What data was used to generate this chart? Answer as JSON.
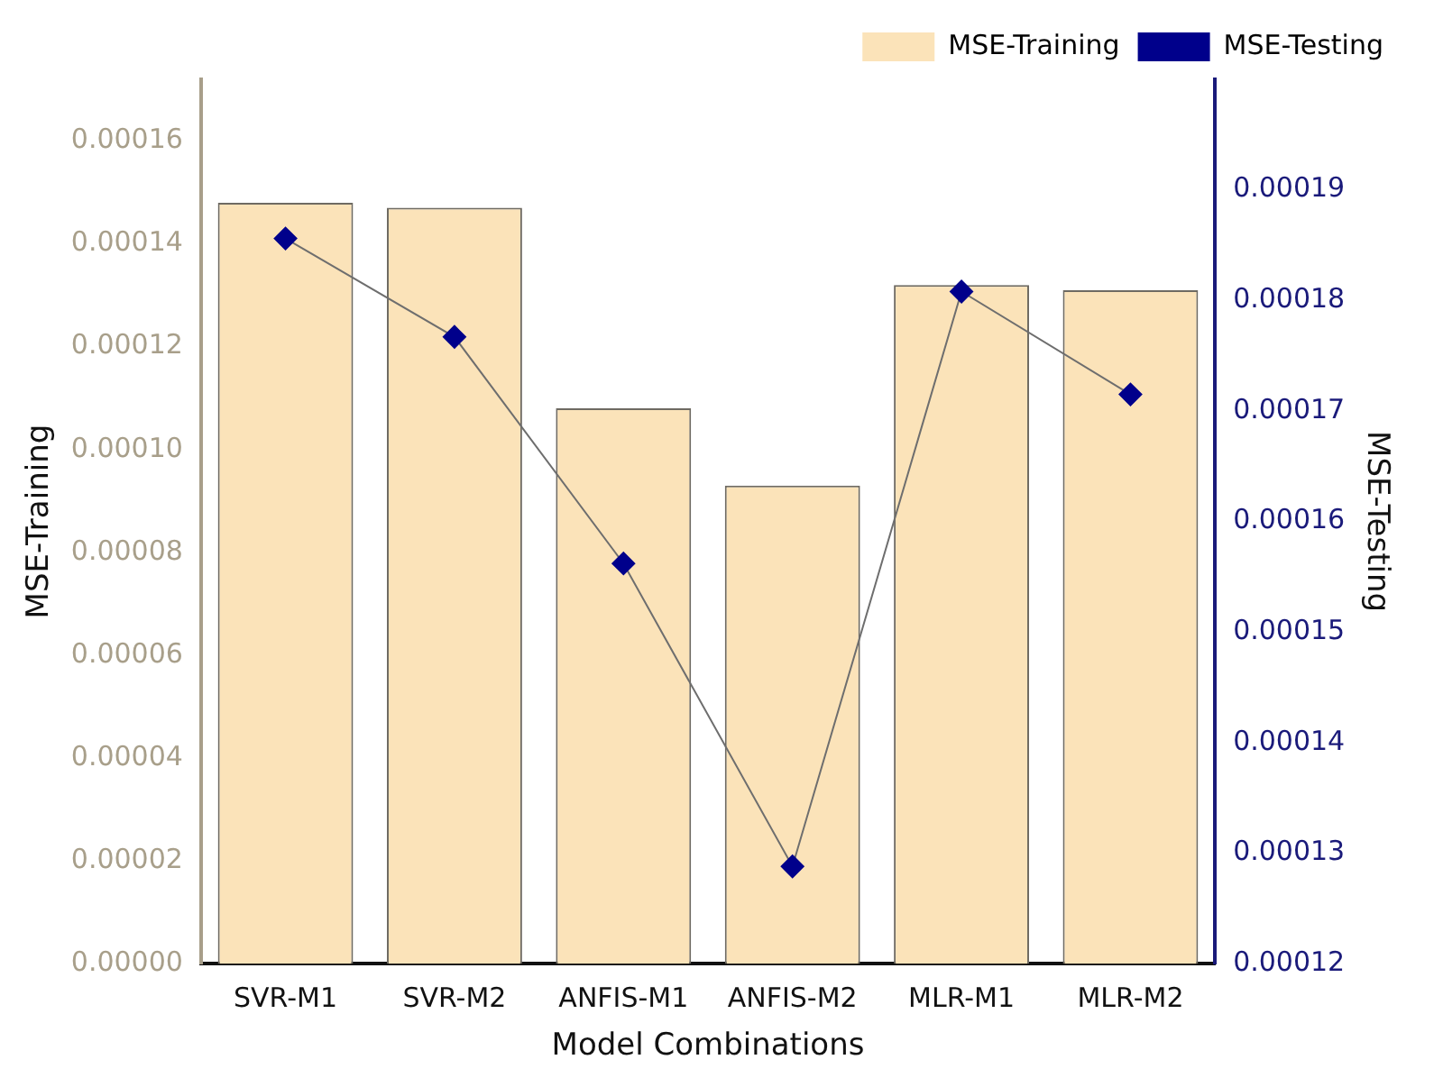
{
  "chart_data": {
    "type": "bar",
    "xlabel": "Model Combinations",
    "ylabel": "MSE-Training",
    "y2label": "MSE-Testing",
    "categories": [
      "SVR-M1",
      "SVR-M2",
      "ANFIS-M1",
      "ANFIS-M2",
      "MLR-M1",
      "MLR-M2"
    ],
    "series": [
      {
        "name": "MSE-Training",
        "color": "#fbe3b9",
        "values": [
          0.000148,
          0.000147,
          0.000108,
          9.3e-05,
          0.000132,
          0.000131
        ]
      },
      {
        "name": "MSE-Testing",
        "type": "line",
        "axis": "y2",
        "color": "#00008b",
        "marker": "diamond",
        "values": [
          0.0001856,
          0.0001767,
          0.0001562,
          0.0001288,
          0.0001808,
          0.0001715
        ]
      }
    ],
    "ylim": [
      0,
      0.000172
    ],
    "yticks": [
      {
        "value": 0,
        "label": "0.00000"
      },
      {
        "value": 2e-05,
        "label": "0.00002"
      },
      {
        "value": 4e-05,
        "label": "0.00004"
      },
      {
        "value": 6e-05,
        "label": "0.00006"
      },
      {
        "value": 8e-05,
        "label": "0.00008"
      },
      {
        "value": 0.0001,
        "label": "0.00010"
      },
      {
        "value": 0.00012,
        "label": "0.00012"
      },
      {
        "value": 0.00014,
        "label": "0.00014"
      },
      {
        "value": 0.00016,
        "label": "0.00016"
      }
    ],
    "y2lim": [
      0.00012,
      0.0002
    ],
    "y2ticks": [
      0.00012,
      0.00013,
      0.00014,
      0.00015,
      0.00016,
      0.00017,
      0.00018,
      0.00019
    ],
    "grid": false,
    "legend": "top right"
  }
}
